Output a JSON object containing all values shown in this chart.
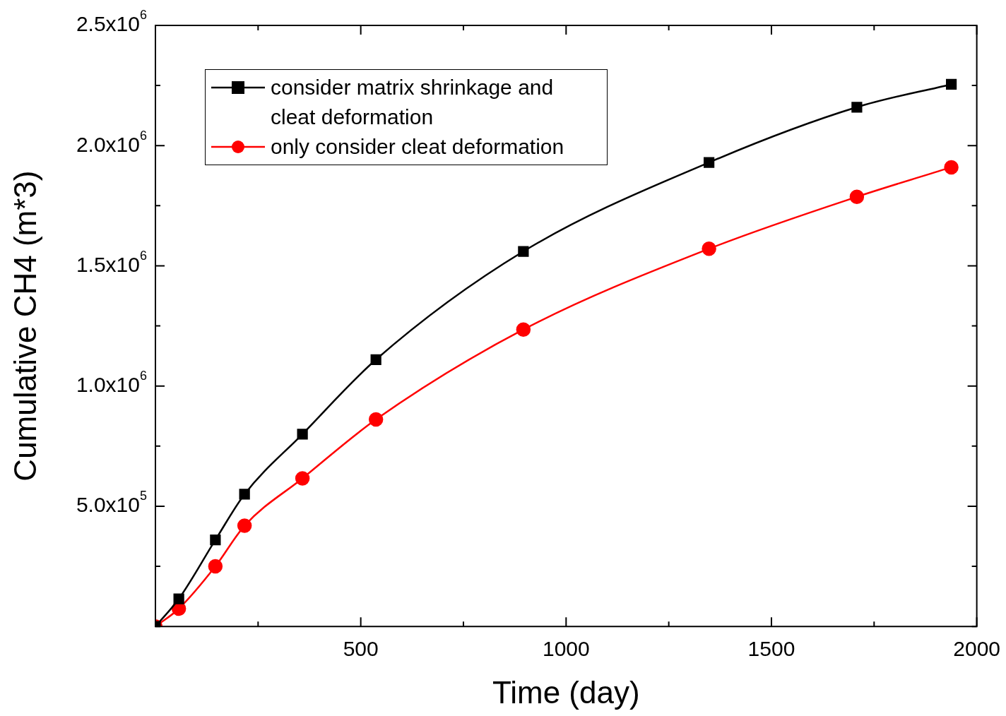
{
  "chart_data": {
    "type": "line",
    "xlabel": "Time (day)",
    "ylabel": "Cumulative CH4 (m*3)",
    "xlim": [
      0,
      2000
    ],
    "ylim": [
      0,
      2500000
    ],
    "xticks": [
      {
        "value": 0,
        "label": null
      },
      {
        "value": 250,
        "label": null
      },
      500,
      {
        "value": 750,
        "label": null
      },
      1000,
      {
        "value": 1250,
        "label": null
      },
      1500,
      {
        "value": 1750,
        "label": null
      },
      2000
    ],
    "yticks": [
      {
        "value": 0,
        "label": null
      },
      {
        "value": 250000,
        "label": null
      },
      {
        "value": 500000,
        "label": "5.0x10$^{5}$"
      },
      {
        "value": 750000,
        "label": null
      },
      {
        "value": 1000000,
        "label": "1.0x10$^{6}$"
      },
      {
        "value": 1250000,
        "label": null
      },
      {
        "value": 1500000,
        "label": "1.5x10$^{6}$"
      },
      {
        "value": 1750000,
        "label": null
      },
      {
        "value": 2000000,
        "label": "2.0x10$^{6}$"
      },
      {
        "value": 2250000,
        "label": null
      },
      {
        "value": 2500000,
        "label": "2.5x10$^{6}$"
      }
    ],
    "x": [
      0,
      57,
      146,
      217,
      358,
      537,
      896,
      1348,
      1708,
      1938
    ],
    "legend": "top left",
    "line_style": "solid",
    "series": [
      {
        "name": "consider matrix shrinkage and cleat deformation",
        "color": "#000000",
        "marker": "square",
        "values": [
          0,
          115000,
          360000,
          550000,
          800000,
          1110000,
          1560000,
          1930000,
          2160000,
          2255000
        ]
      },
      {
        "name": "only consider cleat deformation",
        "color": "#ff0000",
        "marker": "circle",
        "values": [
          0,
          74000,
          250000,
          419000,
          616000,
          861000,
          1235000,
          1571000,
          1787000,
          1910000
        ]
      }
    ]
  }
}
